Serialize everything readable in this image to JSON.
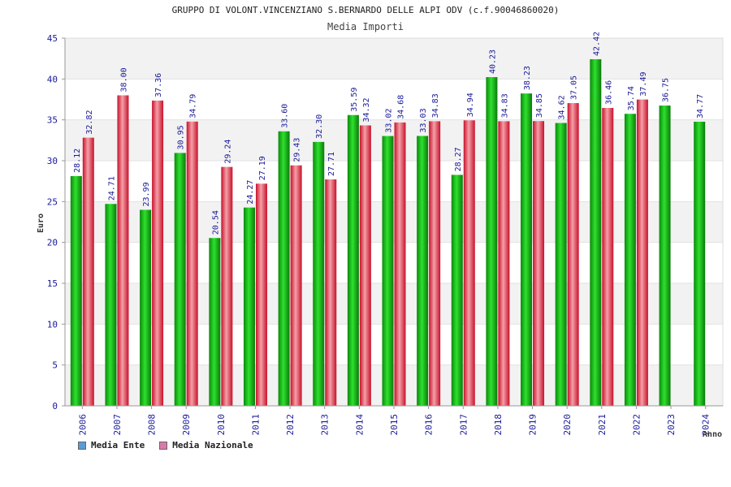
{
  "chart_data": {
    "type": "bar",
    "title": "GRUPPO DI VOLONT.VINCENZIANO S.BERNARDO DELLE ALPI ODV (c.f.90046860020)",
    "subtitle": "Media Importi",
    "xlabel": "Anno",
    "ylabel": "Euro",
    "ylim": [
      0,
      45
    ],
    "yticks": [
      0,
      5,
      10,
      15,
      20,
      25,
      30,
      35,
      40,
      45
    ],
    "categories": [
      "2006",
      "2007",
      "2008",
      "2009",
      "2010",
      "2011",
      "2012",
      "2013",
      "2014",
      "2015",
      "2016",
      "2017",
      "2018",
      "2019",
      "2020",
      "2021",
      "2022",
      "2023",
      "2024"
    ],
    "series": [
      {
        "name": "Media Ente",
        "color": "#14b814",
        "values": [
          28.12,
          24.71,
          23.99,
          30.95,
          20.54,
          24.27,
          33.6,
          32.3,
          35.59,
          33.02,
          33.03,
          28.27,
          40.23,
          38.23,
          34.62,
          42.42,
          35.74,
          36.75,
          34.77
        ],
        "labels": [
          "28.12",
          "24.71",
          "23.99",
          "30.95",
          "20.54",
          "24.27",
          "33.60",
          "32.30",
          "35.59",
          "33.02",
          "33.03",
          "28.27",
          "40.23",
          "38.23",
          "34.62",
          "42.42",
          "35.74",
          "36.75",
          "34.77"
        ]
      },
      {
        "name": "Media Nazionale",
        "color": "#e8303c",
        "values": [
          32.82,
          38.0,
          37.36,
          34.79,
          29.24,
          27.19,
          29.43,
          27.71,
          34.32,
          34.68,
          34.83,
          34.94,
          34.83,
          34.85,
          37.05,
          36.46,
          37.49,
          null,
          null
        ],
        "labels": [
          "32.82",
          "38.00",
          "37.36",
          "34.79",
          "29.24",
          "27.19",
          "29.43",
          "27.71",
          "34.32",
          "34.68",
          "34.83",
          "34.94",
          "34.83",
          "34.85",
          "37.05",
          "36.46",
          "37.49",
          null,
          null
        ]
      }
    ],
    "legend": {
      "placement": "bottom-left",
      "items": [
        {
          "label": "Media Ente",
          "color": "#5b9bd5"
        },
        {
          "label": "Media Nazionale",
          "color": "#d97aa8"
        }
      ]
    },
    "grid": true,
    "band_colors": [
      "#f2f2f2",
      "#ffffff"
    ]
  }
}
